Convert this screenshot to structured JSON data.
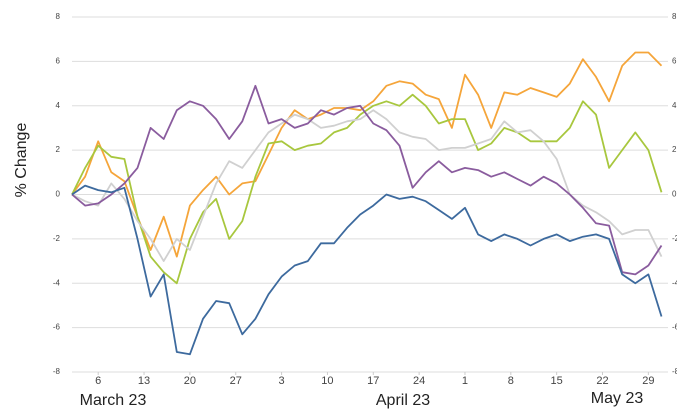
{
  "chart_data": {
    "type": "line",
    "y_label": "% Change",
    "x": [
      1,
      3,
      5,
      7,
      9,
      11,
      13,
      15,
      17,
      19,
      21,
      23,
      25,
      27,
      29,
      31,
      33,
      35,
      37,
      39,
      41,
      43,
      45,
      47,
      49,
      51,
      53,
      55,
      57,
      59,
      61,
      63,
      65,
      67,
      69,
      71,
      73,
      75,
      77,
      79,
      81,
      83,
      85,
      87,
      89,
      91
    ],
    "xlim": [
      1,
      92
    ],
    "xticks": [
      {
        "value": 5,
        "label": "6"
      },
      {
        "value": 12,
        "label": "13"
      },
      {
        "value": 19,
        "label": "20"
      },
      {
        "value": 26,
        "label": "27"
      },
      {
        "value": 33,
        "label": "3"
      },
      {
        "value": 40,
        "label": "10"
      },
      {
        "value": 47,
        "label": "17"
      },
      {
        "value": 54,
        "label": "24"
      },
      {
        "value": 61,
        "label": "1"
      },
      {
        "value": 68,
        "label": "8"
      },
      {
        "value": 75,
        "label": "15"
      },
      {
        "value": 82,
        "label": "22"
      },
      {
        "value": 89,
        "label": "29"
      }
    ],
    "month_labels": [
      "March 23",
      "April 23",
      "May 23"
    ],
    "ylim": [
      -8,
      8
    ],
    "yticks": [
      -8,
      -6,
      -4,
      -2,
      0,
      2,
      4,
      6,
      8
    ],
    "grid": true,
    "series": [
      {
        "color": "#f5a53a",
        "values": [
          0,
          0.8,
          2.4,
          1.0,
          0.6,
          -1.0,
          -2.5,
          -1.0,
          -2.8,
          -0.5,
          0.2,
          0.8,
          0.0,
          0.5,
          0.6,
          1.8,
          3.0,
          3.8,
          3.4,
          3.6,
          3.9,
          3.9,
          3.8,
          4.2,
          4.9,
          5.1,
          5.0,
          4.5,
          4.3,
          3.0,
          5.4,
          4.5,
          3.0,
          4.6,
          4.5,
          4.8,
          4.6,
          4.4,
          5.0,
          6.1,
          5.3,
          4.2,
          5.8,
          6.4,
          6.4,
          5.8
        ]
      },
      {
        "color": "#a8c73e",
        "values": [
          0,
          1.2,
          2.2,
          1.7,
          1.6,
          -1.0,
          -2.8,
          -3.5,
          -4.0,
          -2.0,
          -0.8,
          -0.2,
          -2.0,
          -1.2,
          0.8,
          2.3,
          2.4,
          2.0,
          2.2,
          2.3,
          2.8,
          3.0,
          3.6,
          4.0,
          4.2,
          4.0,
          4.5,
          4.0,
          3.2,
          3.4,
          3.4,
          2.0,
          2.3,
          3.0,
          2.8,
          2.4,
          2.4,
          2.4,
          3.0,
          4.2,
          3.6,
          1.2,
          2.0,
          2.8,
          2.0,
          0.1
        ]
      },
      {
        "color": "#d0d0d0",
        "values": [
          0,
          -0.3,
          -0.5,
          0.5,
          -0.2,
          -1.2,
          -2.0,
          -3.0,
          -2.0,
          -2.5,
          -1.0,
          0.5,
          1.5,
          1.2,
          2.0,
          2.8,
          3.2,
          3.6,
          3.4,
          3.0,
          3.1,
          3.3,
          3.4,
          3.8,
          3.4,
          2.8,
          2.6,
          2.5,
          2.0,
          2.1,
          2.1,
          2.3,
          2.5,
          3.3,
          2.8,
          2.9,
          2.4,
          1.6,
          0.0,
          -0.5,
          -0.8,
          -1.2,
          -1.8,
          -1.6,
          -1.6,
          -2.8
        ]
      },
      {
        "color": "#8a5c9e",
        "values": [
          0,
          -0.5,
          -0.4,
          0.0,
          0.5,
          1.2,
          3.0,
          2.5,
          3.8,
          4.2,
          4.0,
          3.4,
          2.5,
          3.3,
          4.9,
          3.2,
          3.4,
          3.0,
          3.2,
          3.8,
          3.6,
          3.9,
          4.0,
          3.2,
          2.9,
          2.2,
          0.3,
          1.0,
          1.5,
          1.0,
          1.2,
          1.1,
          0.8,
          1.0,
          0.7,
          0.4,
          0.8,
          0.5,
          0.0,
          -0.6,
          -1.3,
          -1.4,
          -3.5,
          -3.6,
          -3.2,
          -2.3
        ]
      },
      {
        "color": "#3d6a9e",
        "values": [
          0,
          0.4,
          0.2,
          0.1,
          0.3,
          -2.0,
          -4.6,
          -3.6,
          -7.1,
          -7.2,
          -5.6,
          -4.8,
          -4.9,
          -6.3,
          -5.6,
          -4.5,
          -3.7,
          -3.2,
          -3.0,
          -2.2,
          -2.2,
          -1.5,
          -0.9,
          -0.5,
          0.0,
          -0.2,
          -0.1,
          -0.3,
          -0.7,
          -1.1,
          -0.6,
          -1.8,
          -2.1,
          -1.8,
          -2.0,
          -2.3,
          -2.0,
          -1.8,
          -2.1,
          -1.9,
          -1.8,
          -2.0,
          -3.6,
          -4.0,
          -3.6,
          -5.5
        ]
      }
    ]
  }
}
